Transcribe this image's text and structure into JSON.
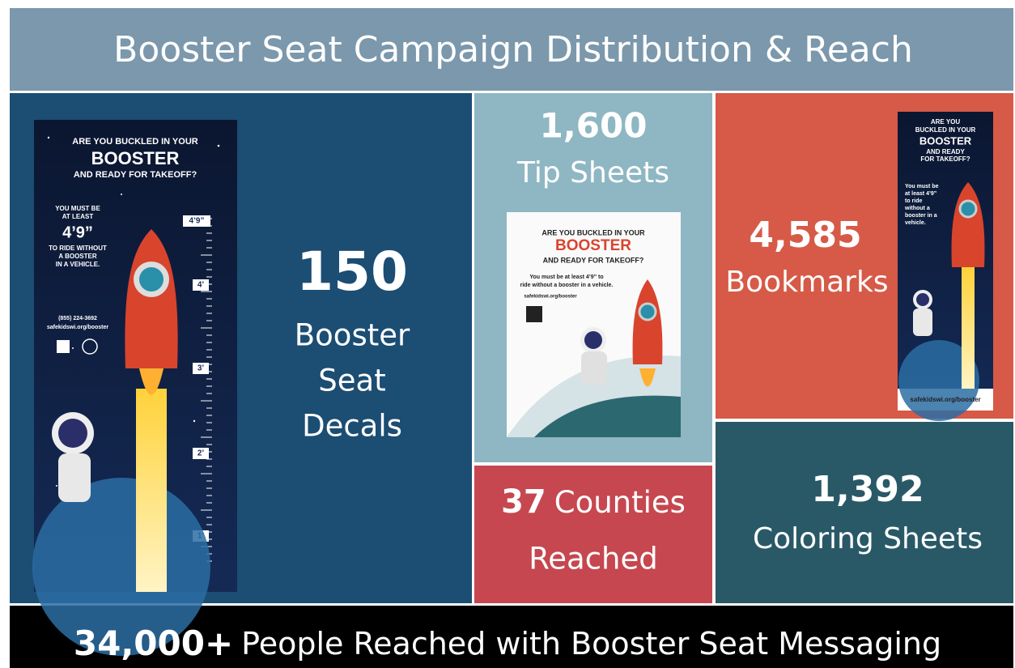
{
  "title": "Booster Seat Campaign Distribution & Reach",
  "decals": {
    "number": "150",
    "label": [
      "Booster",
      "Seat",
      "Decals"
    ]
  },
  "tip_sheets": {
    "number": "1,600",
    "label": "Tip Sheets"
  },
  "bookmarks": {
    "number": "4,585",
    "label": "Bookmarks"
  },
  "counties": {
    "number": "37",
    "label": "Counties",
    "label2": "Reached"
  },
  "coloring_sheets": {
    "number": "1,392",
    "label": "Coloring Sheets"
  },
  "footer": {
    "number": "34,000+",
    "label": "People Reached with Booster Seat Messaging"
  },
  "decal_poster": {
    "line1": "ARE YOU BUCKLED IN YOUR",
    "line2": "BOOSTER",
    "line3": "AND READY FOR TAKEOFF?",
    "must": [
      "YOU MUST BE",
      "AT LEAST"
    ],
    "height": "4’9”",
    "ride": [
      "TO RIDE WITHOUT",
      "A BOOSTER",
      "IN A VEHICLE."
    ],
    "phone": "(855) 224-3692",
    "url": "safekidswi.org/booster",
    "ruler": [
      "4’9”",
      "4’",
      "3’",
      "2’",
      "1’"
    ]
  },
  "tip_poster": {
    "line1": "ARE YOU BUCKLED IN YOUR",
    "line2": "BOOSTER",
    "line3": "AND READY FOR TAKEOFF?",
    "body": [
      "You must be at least 4’9” to",
      "ride without a booster in a vehicle."
    ],
    "url": "safekidswi.org/booster"
  },
  "bookmark_poster": {
    "line1": [
      "ARE YOU",
      "BUCKLED IN YOUR"
    ],
    "line2": "BOOSTER",
    "line3": [
      "AND READY",
      "FOR TAKEOFF?"
    ],
    "body": [
      "You must be",
      "at least 4’9”",
      "to ride",
      "without a",
      "booster in a",
      "vehicle."
    ],
    "url": "safekidswi.org/booster"
  }
}
